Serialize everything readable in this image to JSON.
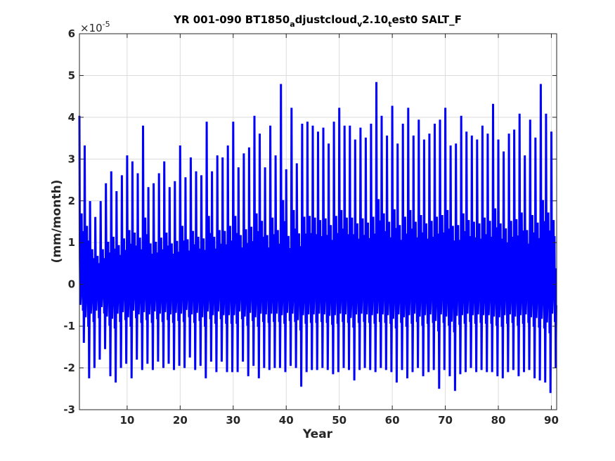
{
  "chart_data": {
    "type": "line",
    "title_main": "YR 001-090 BT1850",
    "title_parts": [
      "a",
      "djustcloud",
      "v",
      "2.10",
      "t",
      "est0 SALT_F"
    ],
    "xlabel": "Year",
    "ylabel": "(mm/month)",
    "multiplier_base": "×10",
    "multiplier_exp": "-5",
    "xlim": [
      1,
      91
    ],
    "ylim": [
      -3,
      6
    ],
    "x_ticks": [
      10,
      20,
      30,
      40,
      50,
      60,
      70,
      80,
      90
    ],
    "y_ticks": [
      -3,
      -2,
      -1,
      0,
      1,
      2,
      3,
      4,
      5,
      6
    ],
    "x_tick_labels": [
      "10",
      "20",
      "30",
      "40",
      "50",
      "60",
      "70",
      "80",
      "90"
    ],
    "y_tick_labels": [
      "-3",
      "-2",
      "-1",
      "0",
      "1",
      "2",
      "3",
      "4",
      "5",
      "6"
    ],
    "grid": true,
    "series": [
      {
        "color": "#0000ff",
        "sampling": "monthly",
        "annual_max": [
          4.25,
          3.5,
          2.1,
          1.7,
          2.1,
          2.55,
          2.85,
          2.35,
          2.75,
          3.25,
          3.1,
          2.8,
          4.0,
          2.45,
          2.55,
          2.8,
          3.1,
          2.45,
          2.6,
          3.5,
          2.7,
          3.2,
          2.85,
          2.75,
          4.1,
          2.85,
          3.25,
          3.2,
          3.5,
          4.1,
          2.95,
          3.3,
          3.45,
          4.25,
          3.8,
          2.95,
          4.0,
          3.25,
          5.05,
          2.9,
          4.45,
          3.05,
          4.05,
          4.1,
          4.0,
          3.85,
          3.95,
          3.55,
          4.1,
          4.45,
          4.0,
          4.0,
          3.65,
          3.95,
          3.7,
          4.05,
          5.1,
          4.25,
          3.75,
          4.5,
          3.55,
          4.05,
          4.45,
          3.75,
          4.15,
          3.65,
          3.8,
          4.05,
          4.15,
          4.45,
          3.5,
          3.55,
          4.25,
          3.85,
          3.75,
          3.65,
          4.0,
          3.8,
          4.55,
          3.65,
          3.35,
          3.8,
          3.9,
          4.3,
          3.25,
          4.15,
          3.7,
          5.05,
          4.3,
          3.85
        ],
        "annual_min": [
          -1.4,
          -2.25,
          -2.0,
          -1.8,
          -1.55,
          -2.2,
          -2.35,
          -2.0,
          -1.9,
          -2.25,
          -1.8,
          -2.05,
          -1.9,
          -2.05,
          -1.85,
          -2.0,
          -1.9,
          -2.05,
          -1.95,
          -2.0,
          -1.75,
          -2.05,
          -1.95,
          -2.25,
          -1.85,
          -2.1,
          -1.85,
          -2.1,
          -2.1,
          -2.1,
          -1.85,
          -2.2,
          -1.95,
          -2.25,
          -2.0,
          -2.05,
          -2.0,
          -2.0,
          -2.1,
          -1.95,
          -2.0,
          -2.45,
          -2.1,
          -2.05,
          -2.05,
          -2.0,
          -2.05,
          -2.15,
          -2.1,
          -2.0,
          -2.05,
          -2.3,
          -2.05,
          -2.0,
          -2.05,
          -2.1,
          -2.0,
          -2.05,
          -2.1,
          -2.35,
          -2.05,
          -2.25,
          -2.1,
          -2.0,
          -2.2,
          -2.1,
          -2.05,
          -2.5,
          -2.05,
          -2.2,
          -2.55,
          -2.15,
          -2.1,
          -2.0,
          -2.1,
          -2.05,
          -2.1,
          -2.1,
          -2.2,
          -2.25,
          -2.1,
          -2.05,
          -2.2,
          -2.1,
          -2.05,
          -2.25,
          -2.3,
          -2.35,
          -2.6,
          -2.0
        ]
      }
    ]
  }
}
